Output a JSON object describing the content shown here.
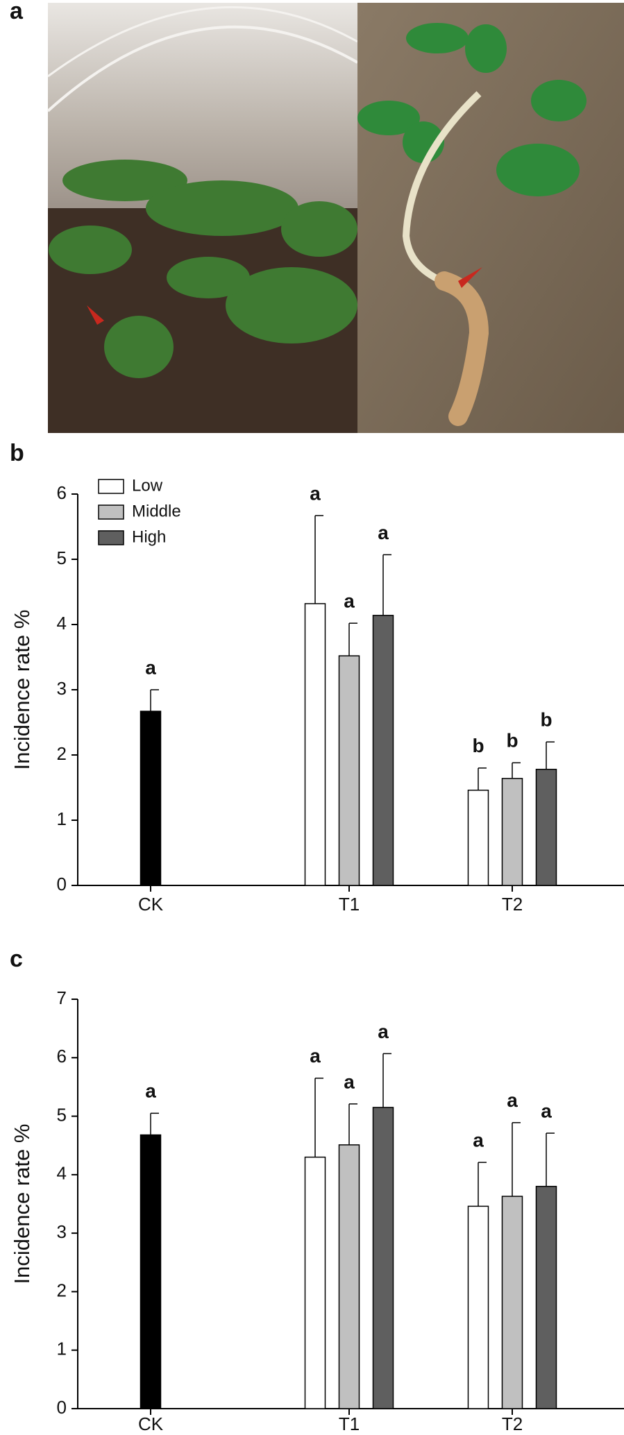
{
  "panel_a": {
    "label": "a"
  },
  "chart_data": [
    {
      "type": "bar",
      "panel_label": "b",
      "y_label": "Incidence rate %",
      "categories": [
        "CK",
        "T1",
        "T2"
      ],
      "ylim": [
        0,
        6
      ],
      "yticks": [
        0,
        1,
        2,
        3,
        4,
        5,
        6
      ],
      "legend": "upper left",
      "series": [
        {
          "color": "#000000",
          "values": [
            2.67,
            null,
            null
          ],
          "errors": [
            0.33,
            null,
            null
          ],
          "letters": [
            "a",
            null,
            null
          ]
        },
        {
          "name": "Low",
          "color": "#ffffff",
          "values": [
            null,
            4.32,
            1.46
          ],
          "errors": [
            null,
            1.35,
            0.34
          ],
          "letters": [
            null,
            "a",
            "b"
          ]
        },
        {
          "name": "Middle",
          "color": "#c0c0c0",
          "values": [
            null,
            3.52,
            1.64
          ],
          "errors": [
            null,
            0.5,
            0.24
          ],
          "letters": [
            null,
            "a",
            "b"
          ]
        },
        {
          "name": "High",
          "color": "#5f5f5f",
          "values": [
            null,
            4.14,
            1.78
          ],
          "errors": [
            null,
            0.93,
            0.42
          ],
          "letters": [
            null,
            "a",
            "b"
          ]
        }
      ]
    },
    {
      "type": "bar",
      "panel_label": "c",
      "y_label": "Incidence rate %",
      "categories": [
        "CK",
        "T1",
        "T2"
      ],
      "ylim": [
        0,
        7
      ],
      "yticks": [
        0,
        1,
        2,
        3,
        4,
        5,
        6,
        7
      ],
      "series": [
        {
          "color": "#000000",
          "values": [
            4.68,
            null,
            null
          ],
          "errors": [
            0.37,
            null,
            null
          ],
          "letters": [
            "a",
            null,
            null
          ]
        },
        {
          "color": "#ffffff",
          "values": [
            null,
            4.3,
            3.46
          ],
          "errors": [
            null,
            1.35,
            0.75
          ],
          "letters": [
            null,
            "a",
            "a"
          ]
        },
        {
          "color": "#c0c0c0",
          "values": [
            null,
            4.51,
            3.63
          ],
          "errors": [
            null,
            0.7,
            1.26
          ],
          "letters": [
            null,
            "a",
            "a"
          ]
        },
        {
          "color": "#5f5f5f",
          "values": [
            null,
            5.15,
            3.8
          ],
          "errors": [
            null,
            0.92,
            0.91
          ],
          "letters": [
            null,
            "a",
            "a"
          ]
        }
      ]
    }
  ]
}
